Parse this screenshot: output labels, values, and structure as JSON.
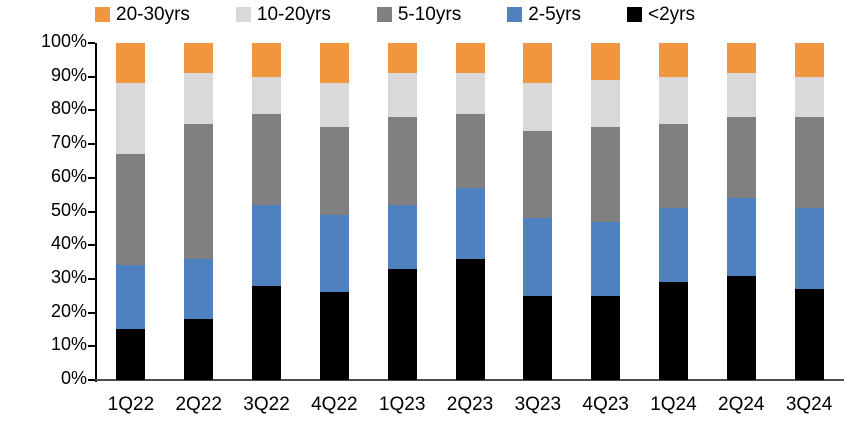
{
  "chart_data": {
    "type": "bar",
    "subtype": "stacked-100-percent",
    "title": "",
    "xlabel": "",
    "ylabel": "",
    "categories": [
      "1Q22",
      "2Q22",
      "3Q22",
      "4Q22",
      "1Q23",
      "2Q23",
      "3Q23",
      "4Q23",
      "1Q24",
      "2Q24",
      "3Q24"
    ],
    "series": [
      {
        "name": "20-30yrs",
        "color": "#F2953F",
        "values": [
          12,
          9,
          10,
          12,
          9,
          9,
          12,
          11,
          10,
          9,
          10
        ]
      },
      {
        "name": "10-20yrs",
        "color": "#D9D9D9",
        "values": [
          21,
          15,
          11,
          13,
          13,
          12,
          14,
          14,
          14,
          13,
          12
        ]
      },
      {
        "name": "5-10yrs",
        "color": "#808080",
        "values": [
          33,
          40,
          27,
          26,
          26,
          22,
          26,
          28,
          25,
          24,
          27
        ]
      },
      {
        "name": "2-5yrs",
        "color": "#4E81BD",
        "values": [
          19,
          18,
          24,
          23,
          19,
          21,
          23,
          22,
          22,
          23,
          24
        ]
      },
      {
        "name": "<2yrs",
        "color": "#000000",
        "values": [
          15,
          18,
          28,
          26,
          33,
          36,
          25,
          25,
          29,
          31,
          27
        ]
      }
    ],
    "stacking": "bottom-up starting with <2yrs (last series at bottom)",
    "y_axis": {
      "min": 0,
      "max": 100,
      "tick_labels": [
        "0%",
        "10%",
        "20%",
        "30%",
        "40%",
        "50%",
        "60%",
        "70%",
        "80%",
        "90%",
        "100%"
      ],
      "grid": false
    },
    "legend": {
      "position": "top",
      "order": [
        "20-30yrs",
        "10-20yrs",
        "5-10yrs",
        "2-5yrs",
        "<2yrs"
      ]
    }
  }
}
